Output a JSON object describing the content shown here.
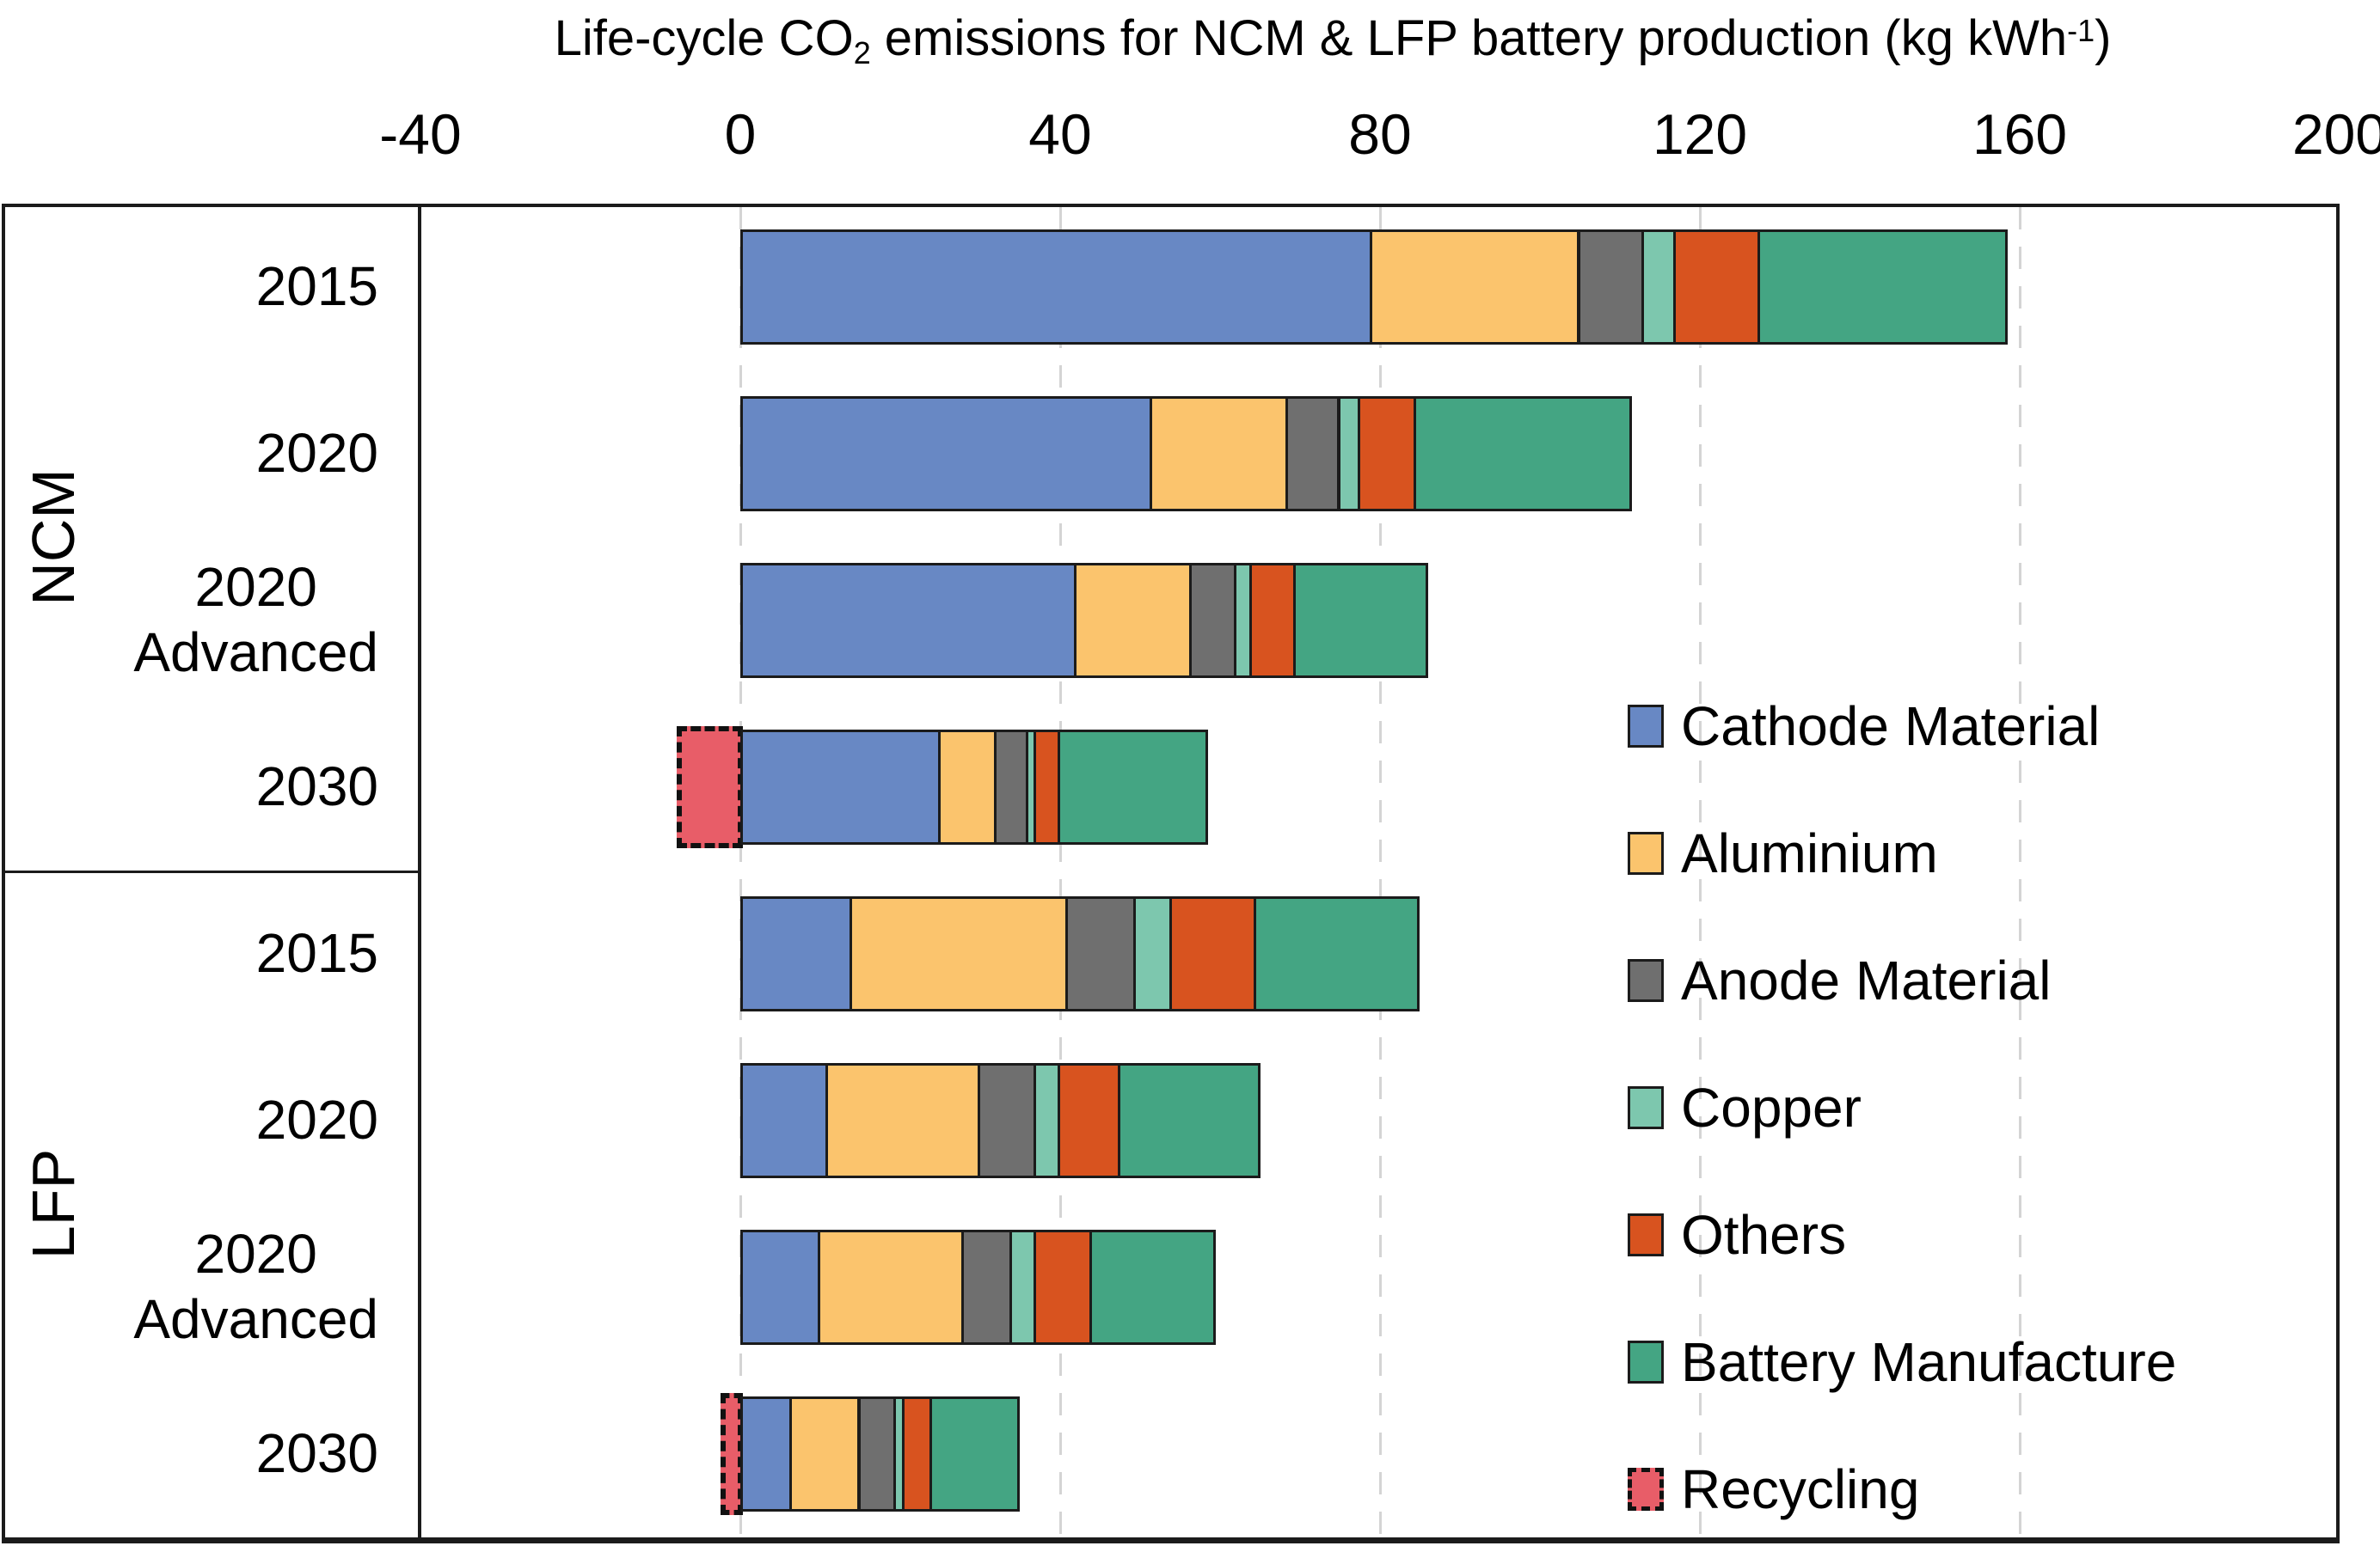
{
  "title": {
    "prefix": "Life-cycle CO",
    "sub": "2",
    "middle": " emissions for NCM & LFP battery production (kg kWh",
    "sup": "-1",
    "suffix": ")"
  },
  "chart_data": {
    "type": "bar",
    "orientation": "horizontal",
    "stacked": true,
    "title": "Life-cycle CO2 emissions for NCM & LFP battery production (kg kWh-1)",
    "unit": "kg CO2 per kWh",
    "x_axis": {
      "position": "top",
      "lim": [
        -40,
        200
      ],
      "ticks": [
        -40,
        0,
        40,
        80,
        120,
        160,
        200
      ],
      "gridlines_at": [
        0,
        40,
        80,
        120,
        160
      ],
      "grid": true
    },
    "legend_position": "right-inside",
    "series": [
      {
        "key": "cathode",
        "name": "Cathode Material",
        "color": "#6888C4",
        "dashed": false
      },
      {
        "key": "aluminium",
        "name": "Aluminium",
        "color": "#FBC46D",
        "dashed": false
      },
      {
        "key": "anode",
        "name": "Anode Material",
        "color": "#6F6F6F",
        "dashed": false
      },
      {
        "key": "copper",
        "name": "Copper",
        "color": "#7DC7AE",
        "dashed": false
      },
      {
        "key": "others",
        "name": "Others",
        "color": "#D8531F",
        "dashed": false
      },
      {
        "key": "battery",
        "name": "Battery Manufacture",
        "color": "#44A583",
        "dashed": false
      },
      {
        "key": "recycling",
        "name": "Recycling",
        "color": "#E85D68",
        "dashed": true
      }
    ],
    "groups": [
      "NCM",
      "LFP"
    ],
    "rows": [
      {
        "group": "NCM",
        "label": "2015",
        "values": {
          "cathode": 79,
          "aluminium": 26,
          "anode": 8,
          "copper": 4,
          "others": 10.5,
          "battery": 31,
          "recycling": 0
        }
      },
      {
        "group": "NCM",
        "label": "2020",
        "values": {
          "cathode": 51.5,
          "aluminium": 17,
          "anode": 6.5,
          "copper": 2.5,
          "others": 7,
          "battery": 27,
          "recycling": 0
        }
      },
      {
        "group": "NCM",
        "label": "2020\nAdvanced",
        "values": {
          "cathode": 42,
          "aluminium": 14.5,
          "anode": 5.5,
          "copper": 2,
          "others": 5.5,
          "battery": 16.5,
          "recycling": 0
        }
      },
      {
        "group": "NCM",
        "label": "2030",
        "values": {
          "cathode": 25,
          "aluminium": 7,
          "anode": 4,
          "copper": 1,
          "others": 3,
          "battery": 18.5,
          "recycling": -8
        }
      },
      {
        "group": "LFP",
        "label": "2015",
        "values": {
          "cathode": 14,
          "aluminium": 27,
          "anode": 8.5,
          "copper": 4.5,
          "others": 10.5,
          "battery": 20.5,
          "recycling": 0
        }
      },
      {
        "group": "LFP",
        "label": "2020",
        "values": {
          "cathode": 11,
          "aluminium": 19,
          "anode": 7,
          "copper": 3,
          "others": 7.5,
          "battery": 17.5,
          "recycling": 0
        }
      },
      {
        "group": "LFP",
        "label": "2020\nAdvanced",
        "values": {
          "cathode": 10,
          "aluminium": 18,
          "anode": 6,
          "copper": 3,
          "others": 7,
          "battery": 15.5,
          "recycling": 0
        }
      },
      {
        "group": "LFP",
        "label": "2030",
        "values": {
          "cathode": 6.5,
          "aluminium": 8.5,
          "anode": 4.5,
          "copper": 1,
          "others": 3.5,
          "battery": 11,
          "recycling": -2.5
        }
      }
    ]
  },
  "colors": {
    "frame": "#1B1B1B",
    "gridline": "#D4D4D4",
    "background": "#FFFFFF"
  }
}
